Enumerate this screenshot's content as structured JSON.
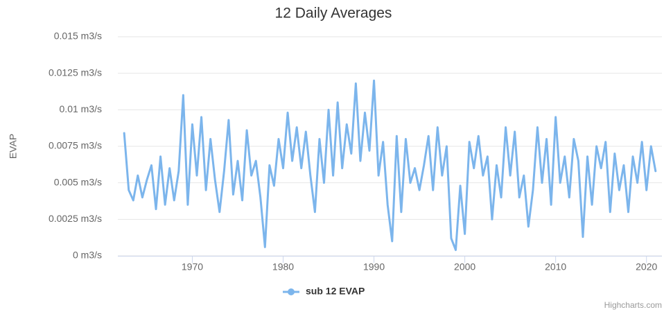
{
  "chart_data": {
    "type": "line",
    "title": "12 Daily Averages",
    "y_label": "EVAP",
    "credit": "Highcharts.com",
    "grid": true,
    "legend": "bottom",
    "xlim": [
      1961.8,
      2021.7
    ],
    "xticks": [
      1970,
      1980,
      1990,
      2000,
      2010,
      2020
    ],
    "ylim": [
      0,
      0.015
    ],
    "yticks": [
      {
        "value": 0,
        "label": "0 m3/s"
      },
      {
        "value": 0.0025,
        "label": "0.0025 m3/s"
      },
      {
        "value": 0.005,
        "label": "0.005 m3/s"
      },
      {
        "value": 0.0075,
        "label": "0.0075 m3/s"
      },
      {
        "value": 0.01,
        "label": "0.01 m3/s"
      },
      {
        "value": 0.0125,
        "label": "0.0125 m3/s"
      },
      {
        "value": 0.015,
        "label": "0.015 m3/s"
      }
    ],
    "x": [
      1962.5,
      1963,
      1963.5,
      1964,
      1964.5,
      1965,
      1965.5,
      1966,
      1966.5,
      1967,
      1967.5,
      1968,
      1968.5,
      1969,
      1969.5,
      1970,
      1970.5,
      1971,
      1971.5,
      1972,
      1972.5,
      1973,
      1973.5,
      1974,
      1974.5,
      1975,
      1975.5,
      1976,
      1976.5,
      1977,
      1977.5,
      1978,
      1978.5,
      1979,
      1979.5,
      1980,
      1980.5,
      1981,
      1981.5,
      1982,
      1982.5,
      1983,
      1983.5,
      1984,
      1984.5,
      1985,
      1985.5,
      1986,
      1986.5,
      1987,
      1987.5,
      1988,
      1988.5,
      1989,
      1989.5,
      1990,
      1990.5,
      1991,
      1991.5,
      1992,
      1992.5,
      1993,
      1993.5,
      1994,
      1994.5,
      1995,
      1995.5,
      1996,
      1996.5,
      1997,
      1997.5,
      1998,
      1998.5,
      1999,
      1999.5,
      2000,
      2000.5,
      2001,
      2001.5,
      2002,
      2002.5,
      2003,
      2003.5,
      2004,
      2004.5,
      2005,
      2005.5,
      2006,
      2006.5,
      2007,
      2007.5,
      2008,
      2008.5,
      2009,
      2009.5,
      2010,
      2010.5,
      2011,
      2011.5,
      2012,
      2012.5,
      2013,
      2013.5,
      2014,
      2014.5,
      2015,
      2015.5,
      2016,
      2016.5,
      2017,
      2017.5,
      2018,
      2018.5,
      2019,
      2019.5,
      2020,
      2020.5,
      2021
    ],
    "series": [
      {
        "name": "sub 12 EVAP",
        "color": "#7cb5ec",
        "values": [
          0.0084,
          0.0045,
          0.0038,
          0.0055,
          0.004,
          0.0052,
          0.0062,
          0.0032,
          0.0068,
          0.0035,
          0.006,
          0.0038,
          0.0058,
          0.011,
          0.0035,
          0.009,
          0.0055,
          0.0095,
          0.0045,
          0.008,
          0.0052,
          0.003,
          0.0058,
          0.0093,
          0.0042,
          0.0065,
          0.0038,
          0.0086,
          0.0055,
          0.0065,
          0.004,
          0.0006,
          0.0062,
          0.0048,
          0.008,
          0.006,
          0.0098,
          0.0065,
          0.0088,
          0.006,
          0.0085,
          0.0055,
          0.003,
          0.008,
          0.005,
          0.01,
          0.0055,
          0.0105,
          0.006,
          0.009,
          0.007,
          0.0118,
          0.0065,
          0.0098,
          0.0072,
          0.012,
          0.0055,
          0.0078,
          0.0035,
          0.001,
          0.0082,
          0.003,
          0.008,
          0.005,
          0.006,
          0.0045,
          0.0062,
          0.0082,
          0.0045,
          0.0088,
          0.0055,
          0.0075,
          0.0012,
          0.0004,
          0.0048,
          0.0015,
          0.0078,
          0.006,
          0.0082,
          0.0055,
          0.0068,
          0.0025,
          0.0062,
          0.004,
          0.0088,
          0.0055,
          0.0085,
          0.004,
          0.0055,
          0.002,
          0.0045,
          0.0088,
          0.005,
          0.008,
          0.0035,
          0.0095,
          0.005,
          0.0068,
          0.004,
          0.008,
          0.0065,
          0.0013,
          0.0068,
          0.0035,
          0.0075,
          0.006,
          0.0078,
          0.003,
          0.007,
          0.0045,
          0.0062,
          0.003,
          0.0068,
          0.005,
          0.0078,
          0.0045,
          0.0075,
          0.0058
        ]
      }
    ]
  }
}
